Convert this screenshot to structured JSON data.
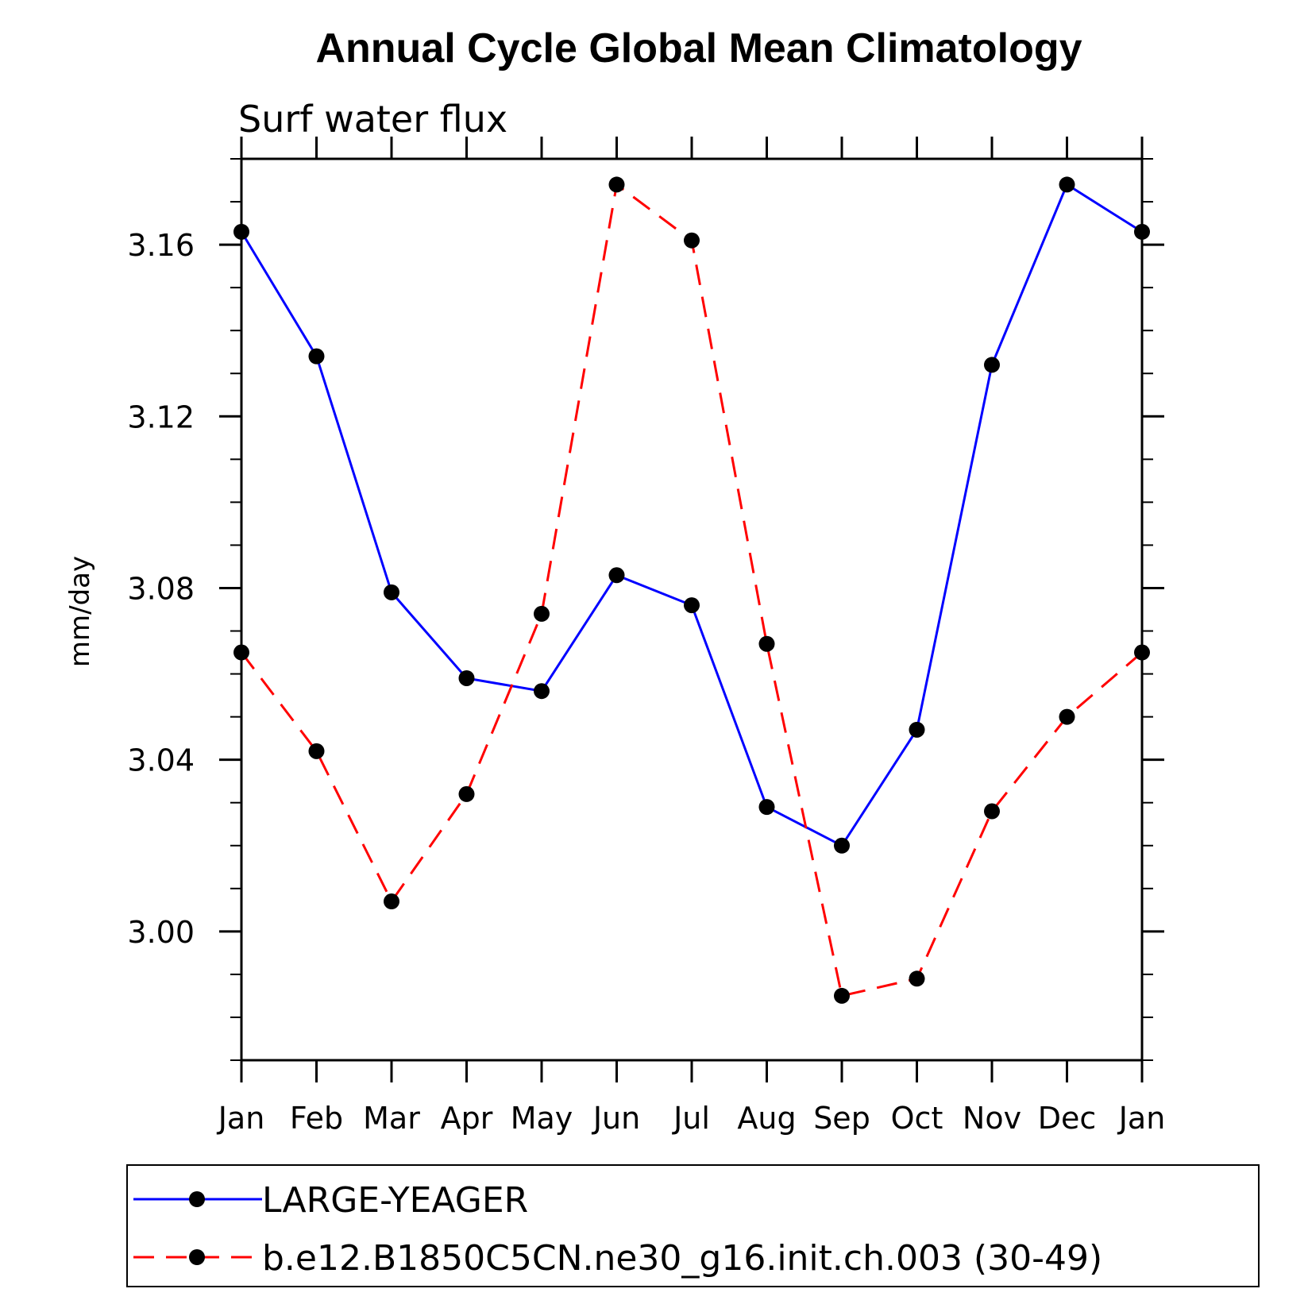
{
  "chart_data": {
    "type": "line",
    "title": "Annual Cycle Global Mean Climatology",
    "subtitle": "Surf water flux",
    "xlabel": "",
    "ylabel": "mm/day",
    "categories": [
      "Jan",
      "Feb",
      "Mar",
      "Apr",
      "May",
      "Jun",
      "Jul",
      "Aug",
      "Sep",
      "Oct",
      "Nov",
      "Dec",
      "Jan"
    ],
    "ylim": [
      2.97,
      3.18
    ],
    "yticks": [
      "3.00",
      "3.04",
      "3.08",
      "3.12",
      "3.16"
    ],
    "grid": false,
    "legend_position": "bottom",
    "series": [
      {
        "name": "LARGE-YEAGER",
        "color": "#0000ff",
        "style": "solid",
        "values": [
          3.163,
          3.134,
          3.079,
          3.059,
          3.056,
          3.083,
          3.076,
          3.029,
          3.02,
          3.047,
          3.132,
          3.174,
          3.163
        ]
      },
      {
        "name": "b.e12.B1850C5CN.ne30_g16.init.ch.003 (30-49)",
        "color": "#ff0000",
        "style": "dashed",
        "values": [
          3.065,
          3.042,
          3.007,
          3.032,
          3.074,
          3.174,
          3.161,
          3.067,
          2.985,
          2.989,
          3.028,
          3.05,
          3.065
        ]
      }
    ]
  }
}
